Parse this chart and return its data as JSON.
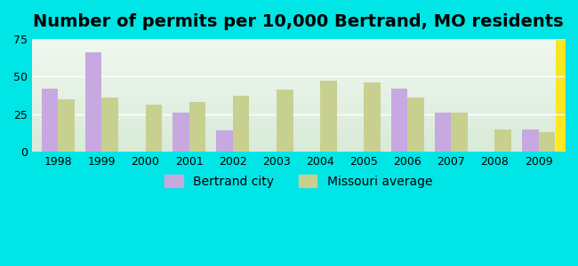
{
  "title": "Number of permits per 10,000 Bertrand, MO residents",
  "years": [
    1998,
    1999,
    2000,
    2001,
    2002,
    2003,
    2004,
    2005,
    2006,
    2007,
    2008,
    2009
  ],
  "bertrand": [
    42,
    66,
    0,
    26,
    14,
    0,
    0,
    0,
    42,
    26,
    0,
    15
  ],
  "missouri": [
    35,
    36,
    31,
    33,
    37,
    41,
    47,
    46,
    36,
    26,
    15,
    13
  ],
  "bertrand_color": "#c8a8e0",
  "missouri_color": "#c8d090",
  "background_color": "#00e5e5",
  "plot_bg_top": "#ffffff",
  "plot_bg_bottom": "#e8f0e0",
  "ylim": [
    0,
    75
  ],
  "yticks": [
    0,
    25,
    50,
    75
  ],
  "bar_width": 0.38,
  "legend_bertrand": "Bertrand city",
  "legend_missouri": "Missouri average",
  "title_fontsize": 14,
  "tick_fontsize": 9,
  "legend_fontsize": 10
}
